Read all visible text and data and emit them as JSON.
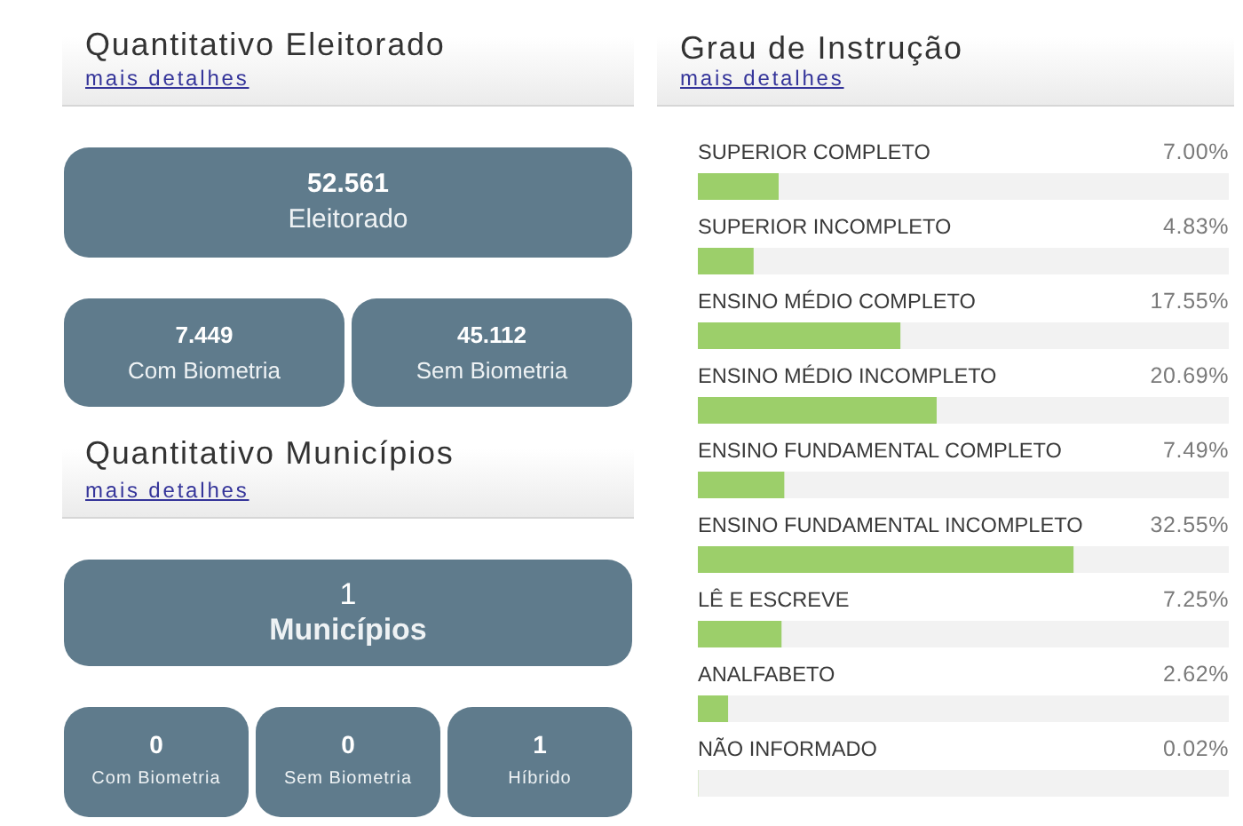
{
  "chart_data": [
    {
      "type": "other",
      "title": "Quantitativo Eleitorado",
      "subtitle": "mais detalhes",
      "categories": [
        "Eleitorado",
        "Com Biometria",
        "Sem Biometria"
      ],
      "value_labels": [
        "52.561",
        "7.449",
        "45.112"
      ]
    },
    {
      "type": "other",
      "title": "Quantitativo Municípios",
      "subtitle": "mais detalhes",
      "categories": [
        "Municípios",
        "Com Biometria",
        "Sem Biometria",
        "Híbrido"
      ],
      "value_labels": [
        "1",
        "0",
        "0",
        "1"
      ]
    },
    {
      "type": "bar",
      "orientation": "horizontal",
      "title": "Grau de Instrução",
      "subtitle": "mais detalhes",
      "categories": [
        "SUPERIOR COMPLETO",
        "SUPERIOR INCOMPLETO",
        "ENSINO MÉDIO COMPLETO",
        "ENSINO MÉDIO INCOMPLETO",
        "ENSINO FUNDAMENTAL COMPLETO",
        "ENSINO FUNDAMENTAL INCOMPLETO",
        "LÊ E ESCREVE",
        "ANALFABETO",
        "NÃO INFORMADO"
      ],
      "values": [
        7.0,
        4.83,
        17.55,
        20.69,
        7.49,
        32.55,
        7.25,
        2.62,
        0.02
      ],
      "value_labels": [
        "7.00%",
        "4.83%",
        "17.55%",
        "20.69%",
        "7.49%",
        "32.55%",
        "7.25%",
        "2.62%",
        "0.02%"
      ],
      "color": "#9ccf6a",
      "xlim": [
        0,
        46
      ],
      "tick_labels": "y"
    }
  ]
}
